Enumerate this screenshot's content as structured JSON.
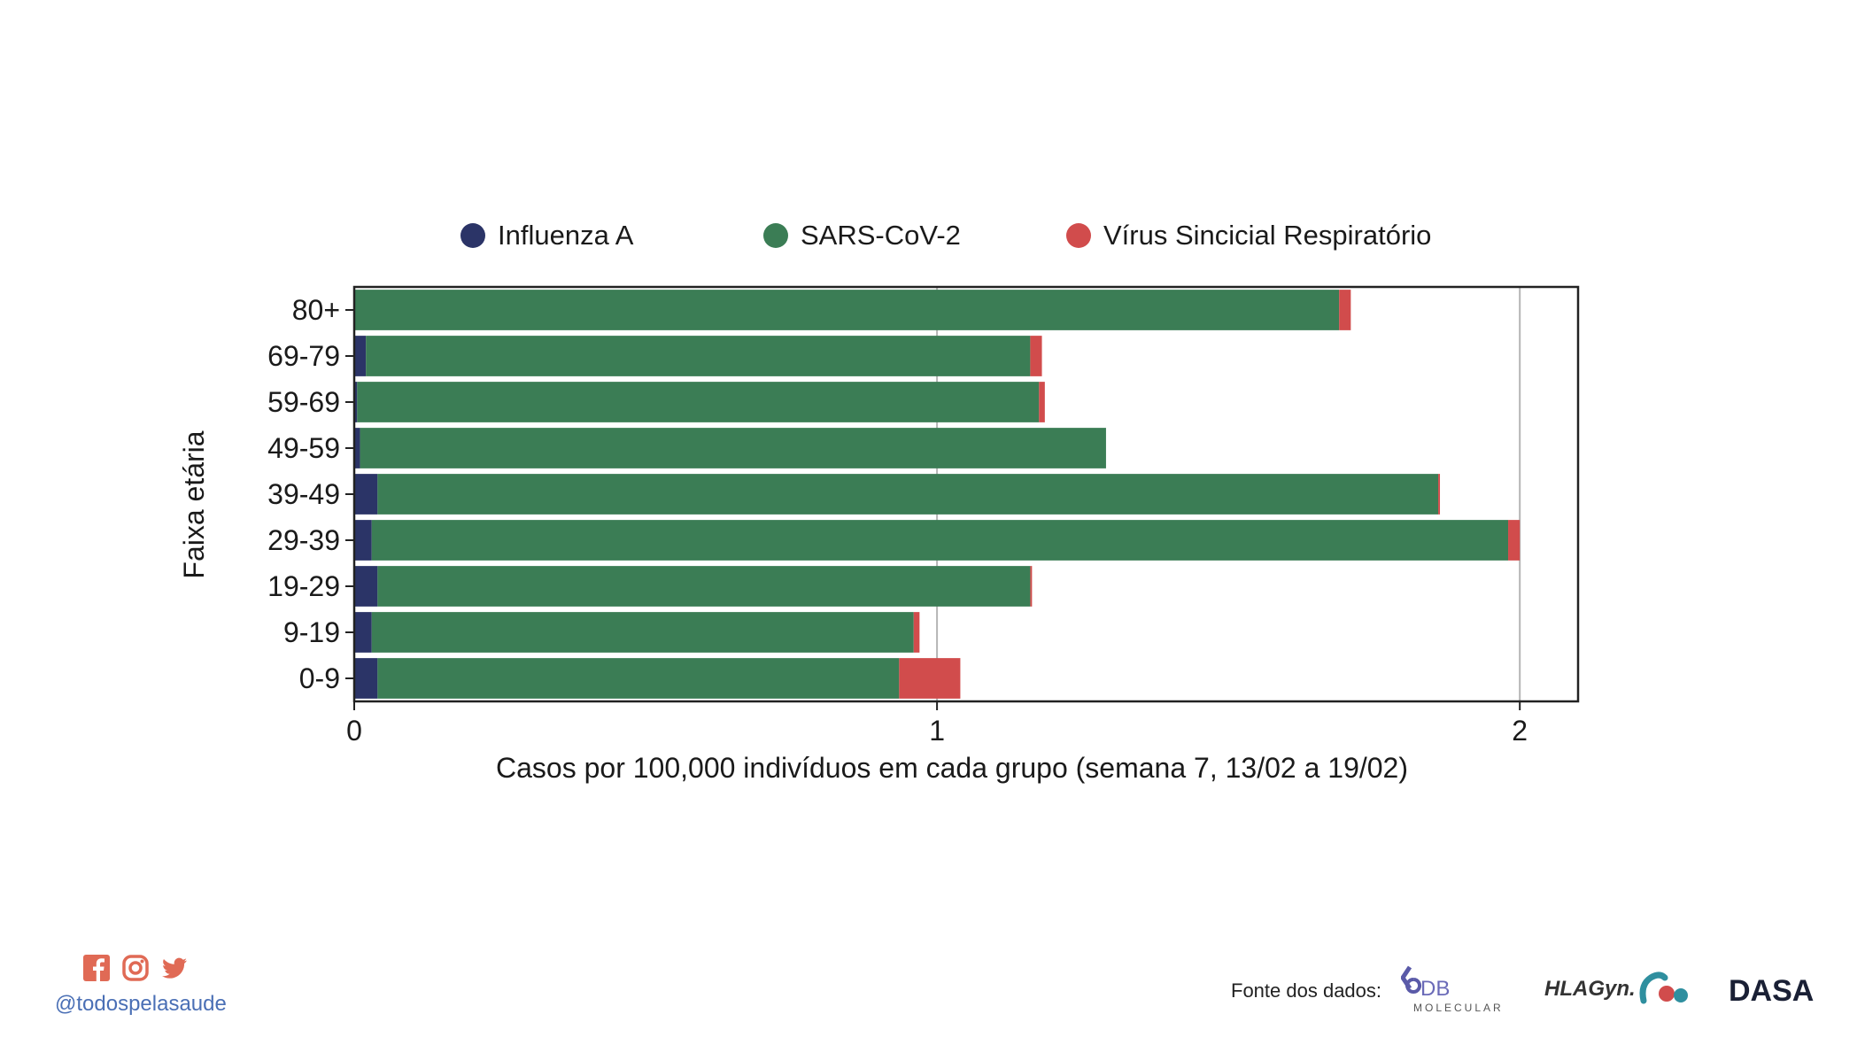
{
  "chart_data": {
    "type": "bar",
    "orientation": "horizontal",
    "stacked": true,
    "categories": [
      "80+",
      "69-79",
      "59-69",
      "49-59",
      "39-49",
      "29-39",
      "19-29",
      "9-19",
      "0-9"
    ],
    "series": [
      {
        "name": "Influenza A",
        "color": "#2b3467",
        "values": [
          0.0,
          0.02,
          0.005,
          0.01,
          0.04,
          0.03,
          0.04,
          0.03,
          0.04
        ]
      },
      {
        "name": "SARS-CoV-2",
        "color": "#3b7d55",
        "values": [
          1.69,
          1.14,
          1.17,
          1.28,
          1.82,
          1.95,
          1.12,
          0.93,
          0.895
        ]
      },
      {
        "name": "Vírus Sincicial Respiratório",
        "color": "#d14c4c",
        "values": [
          0.02,
          0.02,
          0.01,
          0.0,
          0.003,
          0.02,
          0.003,
          0.01,
          0.105
        ]
      }
    ],
    "xticks": [
      "0",
      "1",
      "2"
    ],
    "xlim": [
      0,
      2.1
    ],
    "xlabel": "Casos por 100,000 indivíduos em cada grupo (semana 7, 13/02 a 19/02)",
    "ylabel": "Faixa etária",
    "grid": "vertical",
    "legend_position": "top"
  },
  "footer": {
    "handle": "@todospelasaude",
    "source_label": "Fonte dos dados:",
    "logos": [
      "DB",
      "MOLECULAR",
      "HLAGyn.",
      "DASA"
    ],
    "social_icons": [
      "facebook-icon",
      "instagram-icon",
      "twitter-icon"
    ],
    "accent_color": "#e06a55"
  }
}
